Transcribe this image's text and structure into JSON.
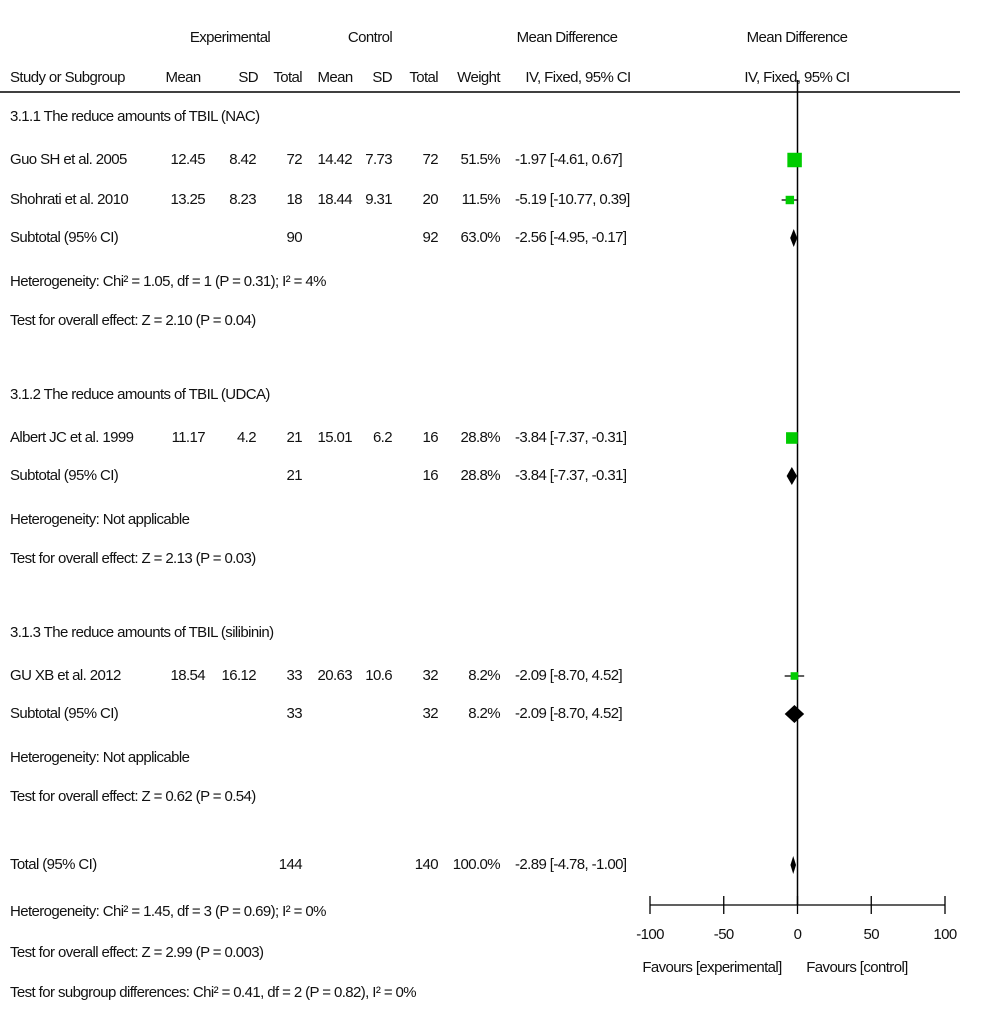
{
  "chart_data": {
    "type": "forest",
    "group_headers": [
      "Experimental",
      "Control",
      "Mean Difference",
      "Mean Difference"
    ],
    "columns": [
      "Study or Subgroup",
      "Mean",
      "SD",
      "Total",
      "Mean",
      "SD",
      "Total",
      "Weight",
      "IV, Fixed, 95% CI",
      "IV, Fixed, 95% CI"
    ],
    "subgroups": [
      {
        "title": "3.1.1 The reduce amounts of TBIL (NAC)",
        "studies": [
          {
            "name": "Guo SH et al. 2005",
            "exp_mean": 12.45,
            "exp_sd": 8.42,
            "exp_total": 72,
            "ctl_mean": 14.42,
            "ctl_sd": 7.73,
            "ctl_total": 72,
            "weight": 51.5,
            "weight_label": "51.5%",
            "md": -1.97,
            "ci": [
              -4.61,
              0.67
            ],
            "md_label": "-1.97 [-4.61, 0.67]"
          },
          {
            "name": "Shohrati et al. 2010",
            "exp_mean": 13.25,
            "exp_sd": 8.23,
            "exp_total": 18,
            "ctl_mean": 18.44,
            "ctl_sd": 9.31,
            "ctl_total": 20,
            "weight": 11.5,
            "weight_label": "11.5%",
            "md": -5.19,
            "ci": [
              -10.77,
              0.39
            ],
            "md_label": "-5.19 [-10.77, 0.39]"
          }
        ],
        "subtotal": {
          "name": "Subtotal (95% CI)",
          "exp_total": 90,
          "ctl_total": 92,
          "weight": 63.0,
          "weight_label": "63.0%",
          "md": -2.56,
          "ci": [
            -4.95,
            -0.17
          ],
          "md_label": "-2.56 [-4.95, -0.17]"
        },
        "heterogeneity": "Heterogeneity: Chi² = 1.05, df = 1 (P = 0.31); I² = 4%",
        "overall_effect": "Test for overall effect: Z = 2.10 (P = 0.04)"
      },
      {
        "title": "3.1.2 The reduce amounts of TBIL (UDCA)",
        "studies": [
          {
            "name": "Albert JC et al. 1999",
            "exp_mean": 11.17,
            "exp_sd": 4.2,
            "exp_total": 21,
            "ctl_mean": 15.01,
            "ctl_sd": 6.2,
            "ctl_total": 16,
            "weight": 28.8,
            "weight_label": "28.8%",
            "md": -3.84,
            "ci": [
              -7.37,
              -0.31
            ],
            "md_label": "-3.84 [-7.37, -0.31]"
          }
        ],
        "subtotal": {
          "name": "Subtotal (95% CI)",
          "exp_total": 21,
          "ctl_total": 16,
          "weight": 28.8,
          "weight_label": "28.8%",
          "md": -3.84,
          "ci": [
            -7.37,
            -0.31
          ],
          "md_label": "-3.84 [-7.37, -0.31]"
        },
        "heterogeneity": "Heterogeneity: Not applicable",
        "overall_effect": "Test for overall effect: Z = 2.13 (P = 0.03)"
      },
      {
        "title": "3.1.3 The reduce amounts of TBIL (silibinin)",
        "studies": [
          {
            "name": "GU XB et al. 2012",
            "exp_mean": 18.54,
            "exp_sd": 16.12,
            "exp_total": 33,
            "ctl_mean": 20.63,
            "ctl_sd": 10.6,
            "ctl_total": 32,
            "weight": 8.2,
            "weight_label": "8.2%",
            "md": -2.09,
            "ci": [
              -8.7,
              4.52
            ],
            "md_label": "-2.09 [-8.70, 4.52]"
          }
        ],
        "subtotal": {
          "name": "Subtotal (95% CI)",
          "exp_total": 33,
          "ctl_total": 32,
          "weight": 8.2,
          "weight_label": "8.2%",
          "md": -2.09,
          "ci": [
            -8.7,
            4.52
          ],
          "md_label": "-2.09 [-8.70, 4.52]"
        },
        "heterogeneity": "Heterogeneity: Not applicable",
        "overall_effect": "Test for overall effect: Z = 0.62 (P = 0.54)"
      }
    ],
    "total": {
      "name": "Total (95% CI)",
      "exp_total": 144,
      "ctl_total": 140,
      "weight": 100.0,
      "weight_label": "100.0%",
      "md": -2.89,
      "ci": [
        -4.78,
        -1.0
      ],
      "md_label": "-2.89 [-4.78, -1.00]"
    },
    "total_heterogeneity": "Heterogeneity: Chi² = 1.45, df = 3 (P = 0.69); I² = 0%",
    "total_overall_effect": "Test for overall effect: Z = 2.99 (P = 0.003)",
    "subgroup_differences": "Test for subgroup differences: Chi² = 0.41, df = 2 (P = 0.82), I² = 0%",
    "xlim": [
      -100,
      100
    ],
    "xticks": [
      -100,
      -50,
      0,
      50,
      100
    ],
    "favours_left": "Favours [experimental]",
    "favours_right": "Favours [control]",
    "marker_color": "#00cc00"
  }
}
